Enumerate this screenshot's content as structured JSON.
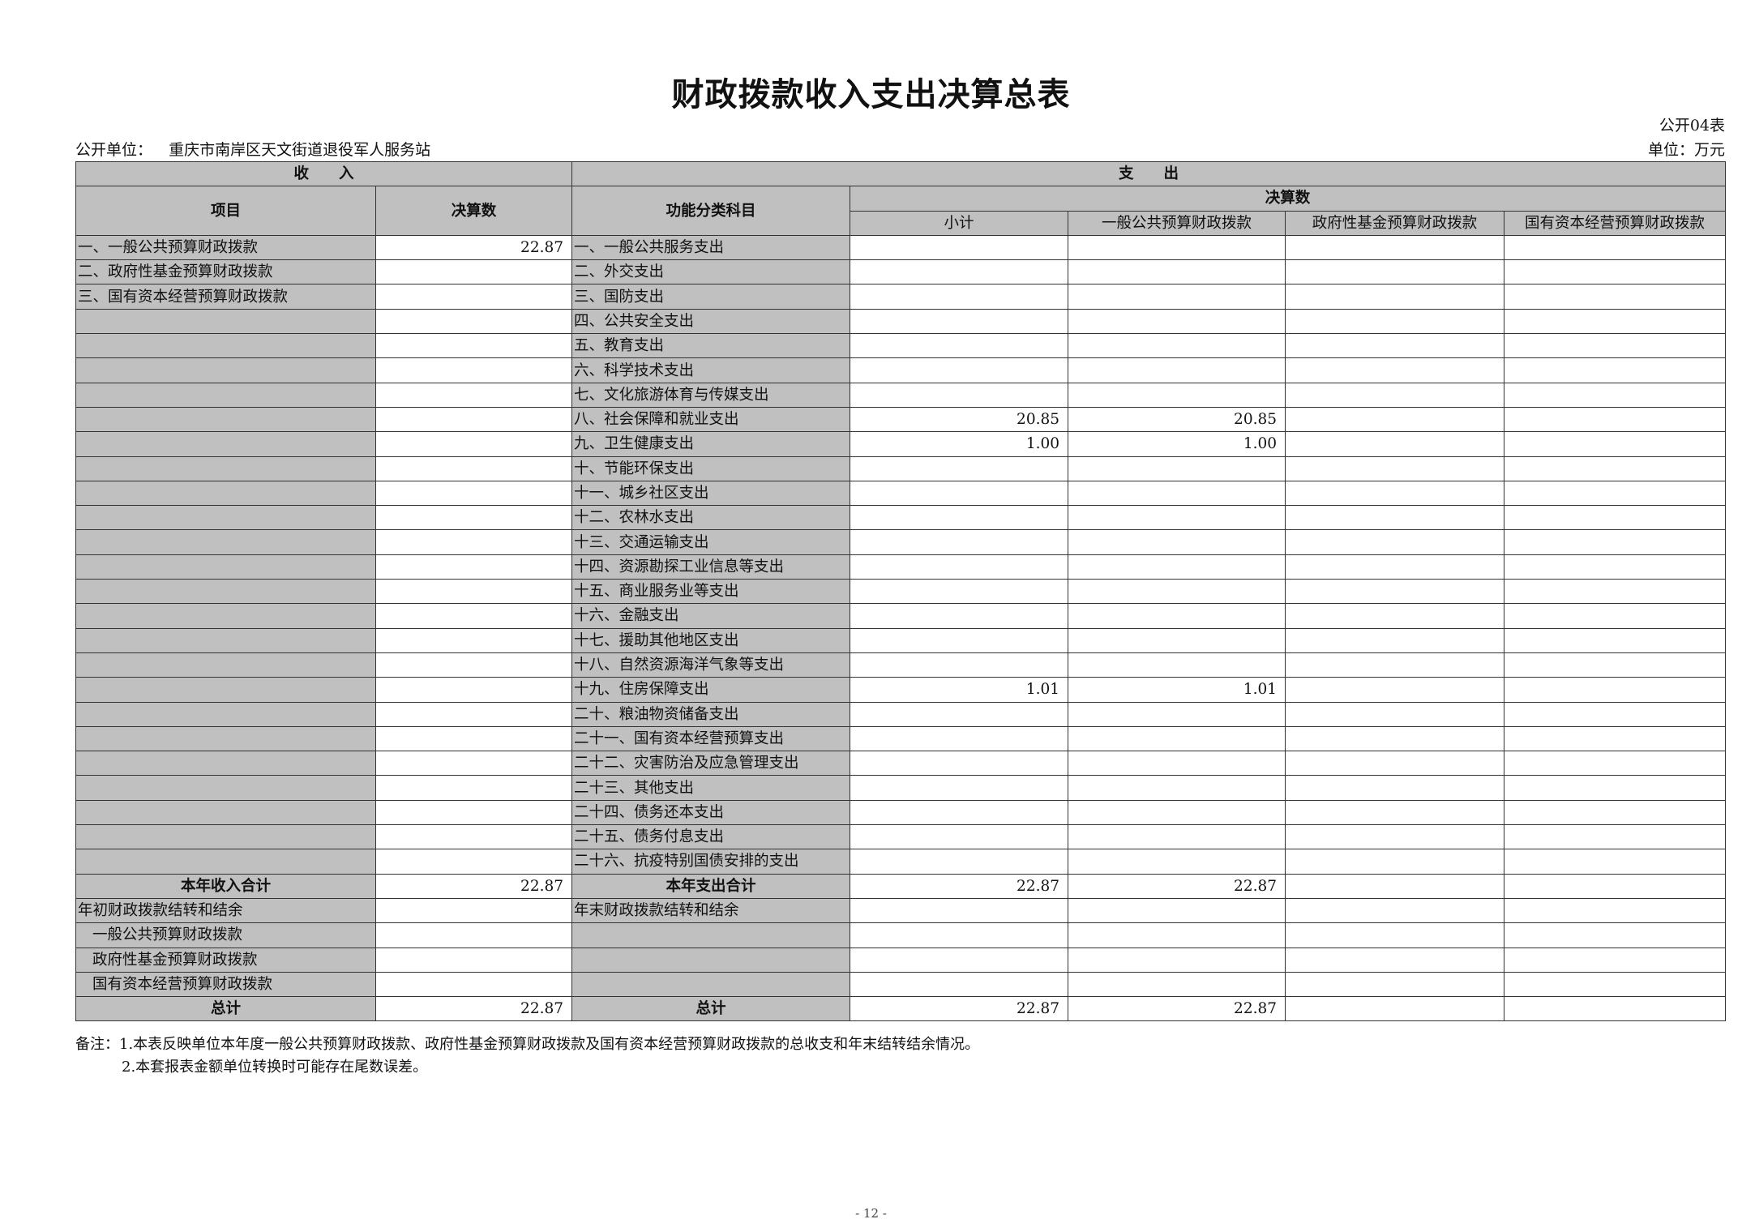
{
  "title": "财政拨款收入支出决算总表",
  "form_no": "公开04表",
  "unit_label": "公开单位：",
  "unit_name": "重庆市南岸区天文街道退役军人服务站",
  "currency_unit": "单位：万元",
  "header": {
    "income": "收　　入",
    "expense": "支　　出",
    "item": "项目",
    "final_amount": "决算数",
    "function_category": "功能分类科目",
    "final_amount_group": "决算数",
    "subtotal": "小计",
    "general_budget": "一般公共预算财政拨款",
    "gov_fund_budget": "政府性基金预算财政拨款",
    "state_capital_budget": "国有资本经营预算财政拨款"
  },
  "rows": [
    {
      "income": "一、一般公共预算财政拨款",
      "income_value": "22.87",
      "expense": "一、一般公共服务支出",
      "subtotal": "",
      "general": "",
      "gov_fund": "",
      "state_capital": ""
    },
    {
      "income": "二、政府性基金预算财政拨款",
      "income_value": "",
      "expense": "二、外交支出",
      "subtotal": "",
      "general": "",
      "gov_fund": "",
      "state_capital": ""
    },
    {
      "income": "三、国有资本经营预算财政拨款",
      "income_value": "",
      "expense": "三、国防支出",
      "subtotal": "",
      "general": "",
      "gov_fund": "",
      "state_capital": ""
    },
    {
      "income": "",
      "income_value": "",
      "expense": "四、公共安全支出",
      "subtotal": "",
      "general": "",
      "gov_fund": "",
      "state_capital": ""
    },
    {
      "income": "",
      "income_value": "",
      "expense": "五、教育支出",
      "subtotal": "",
      "general": "",
      "gov_fund": "",
      "state_capital": ""
    },
    {
      "income": "",
      "income_value": "",
      "expense": "六、科学技术支出",
      "subtotal": "",
      "general": "",
      "gov_fund": "",
      "state_capital": ""
    },
    {
      "income": "",
      "income_value": "",
      "expense": "七、文化旅游体育与传媒支出",
      "subtotal": "",
      "general": "",
      "gov_fund": "",
      "state_capital": ""
    },
    {
      "income": "",
      "income_value": "",
      "expense": "八、社会保障和就业支出",
      "subtotal": "20.85",
      "general": "20.85",
      "gov_fund": "",
      "state_capital": ""
    },
    {
      "income": "",
      "income_value": "",
      "expense": "九、卫生健康支出",
      "subtotal": "1.00",
      "general": "1.00",
      "gov_fund": "",
      "state_capital": ""
    },
    {
      "income": "",
      "income_value": "",
      "expense": "十、节能环保支出",
      "subtotal": "",
      "general": "",
      "gov_fund": "",
      "state_capital": ""
    },
    {
      "income": "",
      "income_value": "",
      "expense": "十一、城乡社区支出",
      "subtotal": "",
      "general": "",
      "gov_fund": "",
      "state_capital": ""
    },
    {
      "income": "",
      "income_value": "",
      "expense": "十二、农林水支出",
      "subtotal": "",
      "general": "",
      "gov_fund": "",
      "state_capital": ""
    },
    {
      "income": "",
      "income_value": "",
      "expense": "十三、交通运输支出",
      "subtotal": "",
      "general": "",
      "gov_fund": "",
      "state_capital": ""
    },
    {
      "income": "",
      "income_value": "",
      "expense": "十四、资源勘探工业信息等支出",
      "subtotal": "",
      "general": "",
      "gov_fund": "",
      "state_capital": ""
    },
    {
      "income": "",
      "income_value": "",
      "expense": "十五、商业服务业等支出",
      "subtotal": "",
      "general": "",
      "gov_fund": "",
      "state_capital": ""
    },
    {
      "income": "",
      "income_value": "",
      "expense": "十六、金融支出",
      "subtotal": "",
      "general": "",
      "gov_fund": "",
      "state_capital": ""
    },
    {
      "income": "",
      "income_value": "",
      "expense": "十七、援助其他地区支出",
      "subtotal": "",
      "general": "",
      "gov_fund": "",
      "state_capital": ""
    },
    {
      "income": "",
      "income_value": "",
      "expense": "十八、自然资源海洋气象等支出",
      "subtotal": "",
      "general": "",
      "gov_fund": "",
      "state_capital": ""
    },
    {
      "income": "",
      "income_value": "",
      "expense": "十九、住房保障支出",
      "subtotal": "1.01",
      "general": "1.01",
      "gov_fund": "",
      "state_capital": ""
    },
    {
      "income": "",
      "income_value": "",
      "expense": "二十、粮油物资储备支出",
      "subtotal": "",
      "general": "",
      "gov_fund": "",
      "state_capital": ""
    },
    {
      "income": "",
      "income_value": "",
      "expense": "二十一、国有资本经营预算支出",
      "subtotal": "",
      "general": "",
      "gov_fund": "",
      "state_capital": ""
    },
    {
      "income": "",
      "income_value": "",
      "expense": "二十二、灾害防治及应急管理支出",
      "subtotal": "",
      "general": "",
      "gov_fund": "",
      "state_capital": ""
    },
    {
      "income": "",
      "income_value": "",
      "expense": "二十三、其他支出",
      "subtotal": "",
      "general": "",
      "gov_fund": "",
      "state_capital": ""
    },
    {
      "income": "",
      "income_value": "",
      "expense": "二十四、债务还本支出",
      "subtotal": "",
      "general": "",
      "gov_fund": "",
      "state_capital": ""
    },
    {
      "income": "",
      "income_value": "",
      "expense": "二十五、债务付息支出",
      "subtotal": "",
      "general": "",
      "gov_fund": "",
      "state_capital": ""
    },
    {
      "income": "",
      "income_value": "",
      "expense": "二十六、抗疫特别国债安排的支出",
      "subtotal": "",
      "general": "",
      "gov_fund": "",
      "state_capital": ""
    },
    {
      "income": "本年收入合计",
      "income_value": "22.87",
      "expense": "本年支出合计",
      "subtotal": "22.87",
      "general": "22.87",
      "gov_fund": "",
      "state_capital": "",
      "bold": true
    },
    {
      "income": "年初财政拨款结转和结余",
      "income_value": "",
      "expense": "年末财政拨款结转和结余",
      "subtotal": "",
      "general": "",
      "gov_fund": "",
      "state_capital": ""
    },
    {
      "income": "一般公共预算财政拨款",
      "income_value": "",
      "expense": "",
      "subtotal": "",
      "general": "",
      "gov_fund": "",
      "state_capital": "",
      "indent": true
    },
    {
      "income": "政府性基金预算财政拨款",
      "income_value": "",
      "expense": "",
      "subtotal": "",
      "general": "",
      "gov_fund": "",
      "state_capital": "",
      "indent": true
    },
    {
      "income": "国有资本经营预算财政拨款",
      "income_value": "",
      "expense": "",
      "subtotal": "",
      "general": "",
      "gov_fund": "",
      "state_capital": "",
      "indent": true
    },
    {
      "income": "总计",
      "income_value": "22.87",
      "expense": "总计",
      "subtotal": "22.87",
      "general": "22.87",
      "gov_fund": "",
      "state_capital": "",
      "bold": true
    }
  ],
  "notes": [
    "备注：1.本表反映单位本年度一般公共预算财政拨款、政府性基金预算财政拨款及国有资本经营预算财政拨款的总收支和年末结转结余情况。",
    "2.本套报表金额单位转换时可能存在尾数误差。"
  ],
  "page_number": "- 12 -",
  "colors": {
    "header_fill": "#c0c0c0",
    "border": "#333333"
  }
}
